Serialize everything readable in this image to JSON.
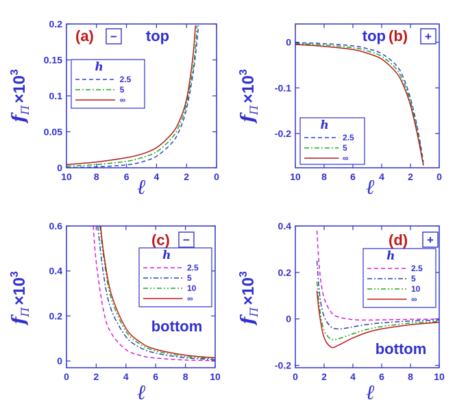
{
  "colors": {
    "axis": "#3030d0",
    "panel_label": "#c01818"
  },
  "chart_data": [
    {
      "type": "line",
      "panel_label": "(a)",
      "sign": "−",
      "position": "top",
      "xlabel": "ℓ",
      "ylabel": {
        "main": "f",
        "sub": "Π",
        "rest": "×10",
        "exp": "3"
      },
      "xlim": [
        10,
        0
      ],
      "ylim": [
        0,
        0.2
      ],
      "xticks": [
        "10",
        "8",
        "6",
        "4",
        "2",
        "0"
      ],
      "xtick_values": [
        10,
        8,
        6,
        4,
        2,
        0
      ],
      "yticks": [
        "0",
        "0.05",
        "0.1",
        "0.15",
        "0.2"
      ],
      "ytick_values": [
        0,
        0.05,
        0.1,
        0.15,
        0.2
      ],
      "legend": {
        "title": "h",
        "placement": "upper-left"
      },
      "series": [
        {
          "name": "2.5",
          "color": "#2a3fd6",
          "dash": "6,4",
          "x": [
            10,
            8,
            6,
            5,
            4,
            3,
            2.5,
            2,
            1.5,
            1.2
          ],
          "y": [
            0.0002,
            0.0012,
            0.004,
            0.008,
            0.016,
            0.034,
            0.051,
            0.082,
            0.14,
            0.198
          ]
        },
        {
          "name": "5",
          "color": "#18a818",
          "dash": "7,3,2,3",
          "x": [
            10,
            8,
            6,
            5,
            4,
            3,
            2.5,
            2,
            1.5,
            1.3
          ],
          "y": [
            0.0022,
            0.0045,
            0.009,
            0.014,
            0.022,
            0.041,
            0.058,
            0.089,
            0.148,
            0.198
          ]
        },
        {
          "name": "∞",
          "color": "#b01818",
          "dash": "",
          "x": [
            10,
            8,
            6,
            5,
            4,
            3,
            2.5,
            2,
            1.6,
            1.4
          ],
          "y": [
            0.0045,
            0.008,
            0.014,
            0.019,
            0.028,
            0.047,
            0.064,
            0.095,
            0.15,
            0.198
          ]
        }
      ]
    },
    {
      "type": "line",
      "panel_label": "(b)",
      "sign": "+",
      "position": "top",
      "xlabel": "ℓ",
      "ylabel": {
        "main": "f",
        "sub": "Π",
        "rest": "×10",
        "exp": "3"
      },
      "xlim": [
        10,
        0
      ],
      "ylim": [
        -0.275,
        0.04
      ],
      "xticks": [
        "10",
        "8",
        "6",
        "4",
        "2",
        "0"
      ],
      "xtick_values": [
        10,
        8,
        6,
        4,
        2,
        0
      ],
      "yticks": [
        "0",
        "-0.1",
        "-0.2"
      ],
      "ytick_values": [
        0,
        -0.1,
        -0.2
      ],
      "legend": {
        "title": "h",
        "placement": "lower-left"
      },
      "series": [
        {
          "name": "2.5",
          "color": "#2a3fd6",
          "dash": "6,4",
          "x": [
            10,
            8,
            6,
            5,
            4,
            3,
            2.5,
            2,
            1.5,
            1.1
          ],
          "y": [
            -0.001,
            -0.003,
            -0.008,
            -0.014,
            -0.025,
            -0.05,
            -0.077,
            -0.123,
            -0.19,
            -0.262
          ]
        },
        {
          "name": "5",
          "color": "#18a818",
          "dash": "7,3,2,3",
          "x": [
            10,
            8,
            6,
            5,
            4,
            3,
            2.5,
            2,
            1.5,
            1.1
          ],
          "y": [
            -0.003,
            -0.006,
            -0.012,
            -0.019,
            -0.031,
            -0.058,
            -0.086,
            -0.13,
            -0.197,
            -0.266
          ]
        },
        {
          "name": "∞",
          "color": "#b01818",
          "dash": "",
          "x": [
            10,
            8,
            6,
            5,
            4,
            3,
            2.5,
            2,
            1.5,
            1.1
          ],
          "y": [
            -0.005,
            -0.009,
            -0.016,
            -0.024,
            -0.037,
            -0.066,
            -0.094,
            -0.138,
            -0.205,
            -0.27
          ]
        }
      ]
    },
    {
      "type": "line",
      "panel_label": "(c)",
      "sign": "−",
      "position": "bottom",
      "xlabel": "ℓ",
      "ylabel": {
        "main": "f",
        "sub": "Π",
        "rest": "×10",
        "exp": "3"
      },
      "xlim": [
        0,
        10
      ],
      "ylim": [
        -0.03,
        0.6
      ],
      "xticks": [
        "0",
        "2",
        "4",
        "6",
        "8",
        "10"
      ],
      "xtick_values": [
        0,
        2,
        4,
        6,
        8,
        10
      ],
      "yticks": [
        "0",
        "0.2",
        "0.4",
        "0.6"
      ],
      "ytick_values": [
        0,
        0.2,
        0.4,
        0.6
      ],
      "legend": {
        "title": "h",
        "placement": "upper-right"
      },
      "series": [
        {
          "name": "2.5",
          "color": "#d81ad8",
          "dash": "6,4",
          "x": [
            1.8,
            2,
            2.5,
            3,
            4,
            5,
            6,
            8,
            10
          ],
          "y": [
            0.6,
            0.44,
            0.22,
            0.125,
            0.05,
            0.024,
            0.013,
            0.004,
            0.001
          ]
        },
        {
          "name": "5",
          "color": "#2a3fb0",
          "dash": "7,3,2,3",
          "x": [
            2.1,
            2.5,
            3,
            4,
            5,
            6,
            8,
            10
          ],
          "y": [
            0.6,
            0.38,
            0.23,
            0.108,
            0.058,
            0.035,
            0.014,
            0.006
          ]
        },
        {
          "name": "10",
          "color": "#18a818",
          "dash": "7,3,2,3,2,3",
          "x": [
            2.25,
            2.5,
            3,
            4,
            5,
            6,
            8,
            10
          ],
          "y": [
            0.6,
            0.46,
            0.28,
            0.132,
            0.073,
            0.045,
            0.02,
            0.01
          ]
        },
        {
          "name": "∞",
          "color": "#c01818",
          "dash": "",
          "x": [
            2.3,
            2.5,
            3,
            4,
            5,
            6,
            8,
            10
          ],
          "y": [
            0.6,
            0.48,
            0.3,
            0.145,
            0.082,
            0.052,
            0.026,
            0.014
          ]
        }
      ]
    },
    {
      "type": "line",
      "panel_label": "(d)",
      "sign": "+",
      "position": "bottom",
      "xlabel": "ℓ",
      "ylabel": {
        "main": "f",
        "sub": "Π",
        "rest": "×10",
        "exp": "3"
      },
      "xlim": [
        0,
        10
      ],
      "ylim": [
        -0.21,
        0.4
      ],
      "xticks": [
        "0",
        "2",
        "4",
        "6",
        "8",
        "10"
      ],
      "xtick_values": [
        0,
        2,
        4,
        6,
        8,
        10
      ],
      "yticks": [
        "0.4",
        "0.2",
        "0",
        "-0.2"
      ],
      "ytick_values": [
        0.4,
        0.2,
        0,
        -0.2
      ],
      "legend": {
        "title": "h",
        "placement": "upper-right"
      },
      "series": [
        {
          "name": "2.5",
          "color": "#d81ad8",
          "dash": "6,4",
          "x": [
            1.5,
            1.7,
            2,
            2.5,
            3,
            4,
            5,
            6,
            8,
            10
          ],
          "y": [
            0.38,
            0.2,
            0.09,
            0.028,
            0.008,
            -0.003,
            -0.005,
            -0.004,
            -0.002,
            -0.001
          ]
        },
        {
          "name": "5",
          "color": "#2a3fb0",
          "dash": "7,3,2,3",
          "x": [
            1.5,
            1.7,
            2,
            2.5,
            3,
            3.5,
            4,
            5,
            6,
            8,
            10
          ],
          "y": [
            0.25,
            0.1,
            0.01,
            -0.035,
            -0.043,
            -0.04,
            -0.034,
            -0.024,
            -0.017,
            -0.009,
            -0.005
          ]
        },
        {
          "name": "10",
          "color": "#18a818",
          "dash": "7,3,2,3,2,3",
          "x": [
            1.5,
            1.7,
            2,
            2.5,
            3,
            3.5,
            4,
            5,
            6,
            8,
            10
          ],
          "y": [
            0.16,
            0.04,
            -0.05,
            -0.088,
            -0.085,
            -0.075,
            -0.064,
            -0.045,
            -0.033,
            -0.018,
            -0.011
          ]
        },
        {
          "name": "∞",
          "color": "#c01818",
          "dash": "",
          "x": [
            1.5,
            1.7,
            2,
            2.5,
            3,
            3.5,
            4,
            5,
            6,
            8,
            10
          ],
          "y": [
            0.12,
            0.01,
            -0.08,
            -0.122,
            -0.113,
            -0.097,
            -0.082,
            -0.058,
            -0.043,
            -0.025,
            -0.015
          ]
        }
      ]
    }
  ]
}
